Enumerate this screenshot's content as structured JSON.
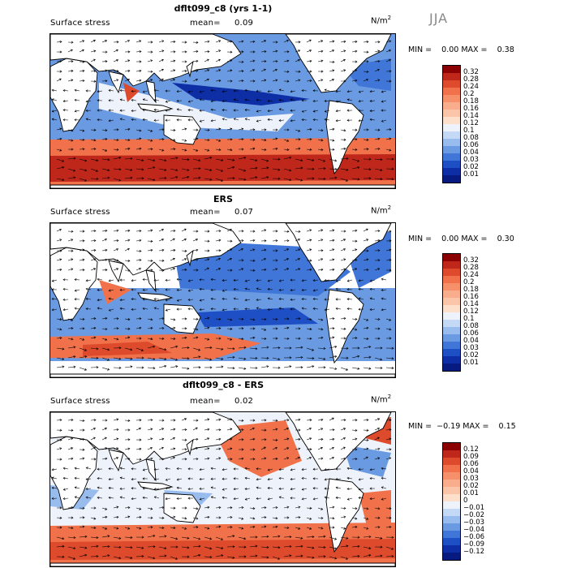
{
  "season": "JJA",
  "panels": [
    {
      "title": "dflt099_c8 (yrs 1-1)",
      "variable": "Surface stress",
      "mean_label": "mean=",
      "mean_value": "0.09",
      "units_base": "N/m",
      "units_exp": "2",
      "stats": "MIN =    0.00 MAX =    0.38",
      "colorbar_labels": [
        "0.32",
        "0.28",
        "0.24",
        "0.2",
        "0.18",
        "0.16",
        "0.14",
        "0.12",
        "0.1",
        "0.08",
        "0.06",
        "0.04",
        "0.03",
        "0.02",
        "0.01"
      ],
      "colorbar_colors": [
        "#8b0000",
        "#c0271b",
        "#dd4a2c",
        "#f0714a",
        "#f6906b",
        "#f9ad8c",
        "#fbc5a9",
        "#fde0cc",
        "#eef3fb",
        "#c4d9f5",
        "#98bcee",
        "#6a9be2",
        "#3f76d8",
        "#1f4fc4",
        "#0e2ea6",
        "#061a80"
      ]
    },
    {
      "title": "ERS",
      "variable": "Surface stress",
      "mean_label": "mean=",
      "mean_value": "0.07",
      "units_base": "N/m",
      "units_exp": "2",
      "stats": "MIN =    0.00 MAX =    0.30",
      "colorbar_labels": [
        "0.32",
        "0.28",
        "0.24",
        "0.2",
        "0.18",
        "0.16",
        "0.14",
        "0.12",
        "0.1",
        "0.08",
        "0.06",
        "0.04",
        "0.03",
        "0.02",
        "0.01"
      ],
      "colorbar_colors": [
        "#8b0000",
        "#c0271b",
        "#dd4a2c",
        "#f0714a",
        "#f6906b",
        "#f9ad8c",
        "#fbc5a9",
        "#fde0cc",
        "#eef3fb",
        "#c4d9f5",
        "#98bcee",
        "#6a9be2",
        "#3f76d8",
        "#1f4fc4",
        "#0e2ea6",
        "#061a80"
      ]
    },
    {
      "title": "dflt099_c8 - ERS",
      "variable": "Surface stress",
      "mean_label": "mean=",
      "mean_value": "0.02",
      "units_base": "N/m",
      "units_exp": "2",
      "stats": "MIN =  −0.19 MAX =    0.15",
      "colorbar_labels": [
        "0.12",
        "0.09",
        "0.06",
        "0.04",
        "0.03",
        "0.02",
        "0.01",
        "0",
        "−0.01",
        "−0.02",
        "−0.03",
        "−0.04",
        "−0.06",
        "−0.09",
        "−0.12"
      ],
      "colorbar_colors": [
        "#8b0000",
        "#c0271b",
        "#dd4a2c",
        "#f0714a",
        "#f6906b",
        "#f9ad8c",
        "#fbc5a9",
        "#fde0cc",
        "#eef3fb",
        "#c4d9f5",
        "#98bcee",
        "#6a9be2",
        "#3f76d8",
        "#1f4fc4",
        "#0e2ea6",
        "#061a80"
      ]
    }
  ]
}
